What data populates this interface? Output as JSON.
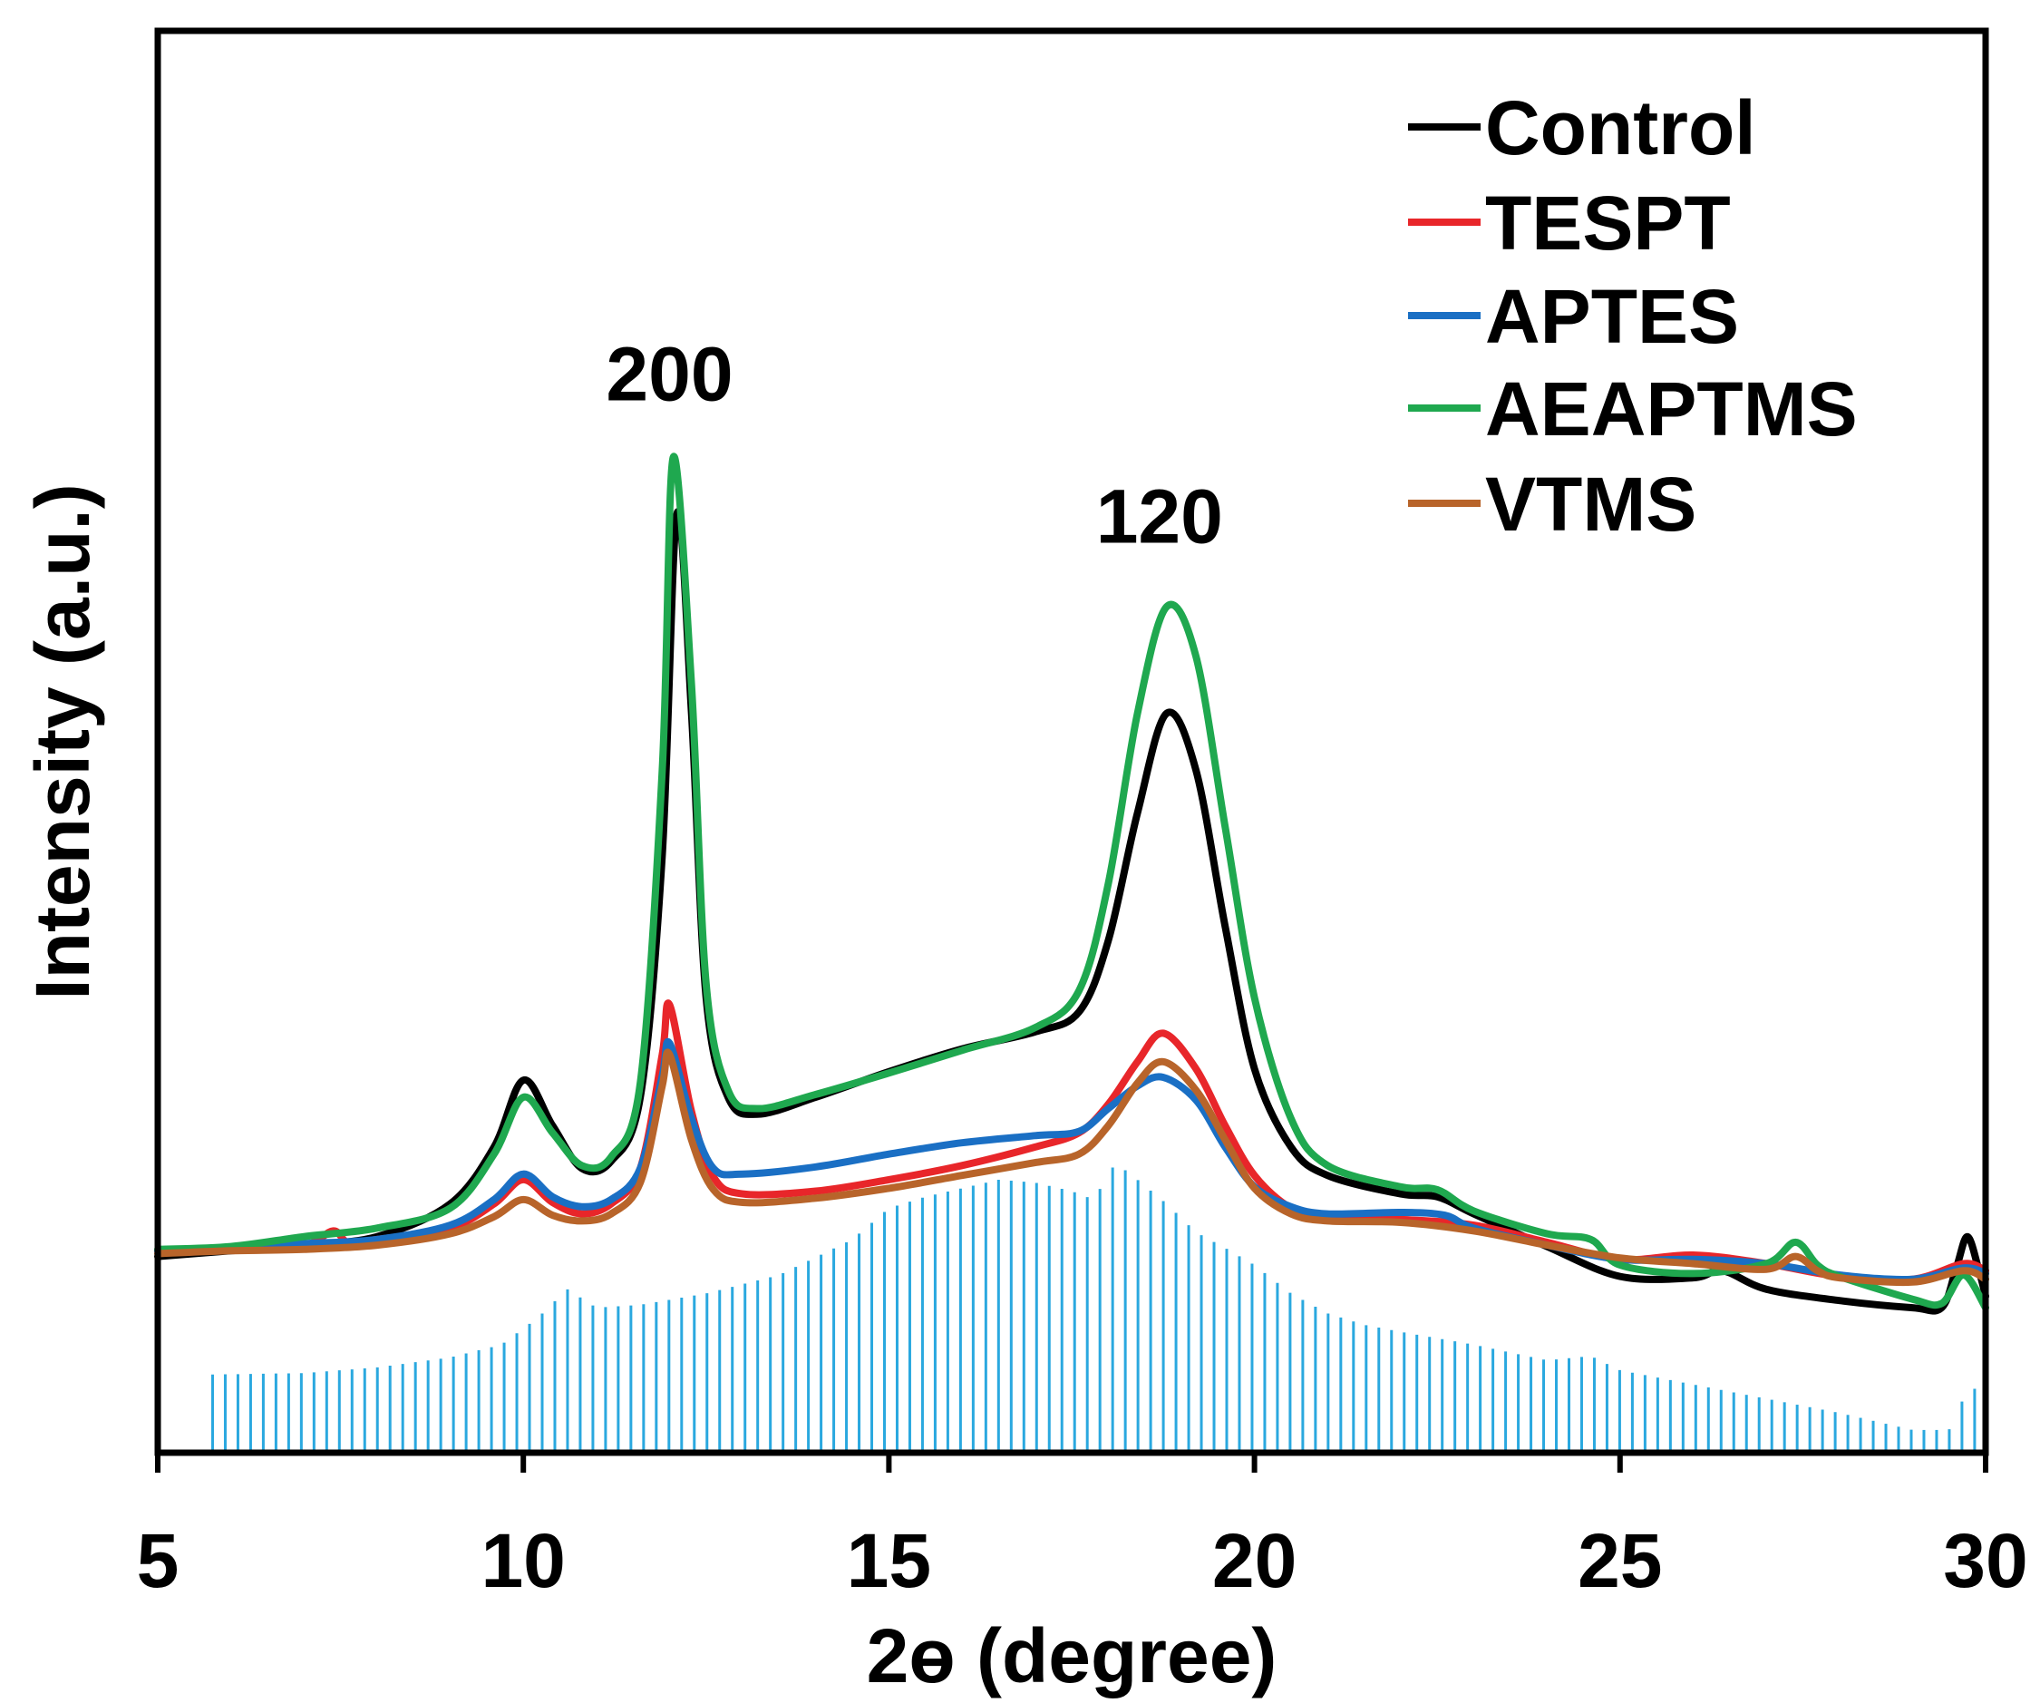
{
  "chart_data": {
    "type": "line",
    "title": "",
    "xlabel": "2ɵ (degree)",
    "ylabel": "Intensity (a.u.)",
    "xlim": [
      5,
      30
    ],
    "ylim": [
      0,
      100
    ],
    "xticks": [
      5,
      10,
      15,
      20,
      25,
      30
    ],
    "yticks_visible": false,
    "grid": false,
    "legend_position": "top-right",
    "annotations": [
      {
        "text": "200",
        "x": 12.0,
        "y": 74
      },
      {
        "text": "120",
        "x": 18.7,
        "y": 64
      }
    ],
    "series": [
      {
        "name": "Control",
        "color": "#000000",
        "points": [
          [
            5,
            13.8
          ],
          [
            6,
            14.2
          ],
          [
            7,
            14.6
          ],
          [
            8,
            15.2
          ],
          [
            9,
            17.5
          ],
          [
            9.6,
            21.5
          ],
          [
            10.0,
            26.2
          ],
          [
            10.4,
            23
          ],
          [
            10.8,
            20
          ],
          [
            11.2,
            20.5
          ],
          [
            11.6,
            25
          ],
          [
            11.9,
            42
          ],
          [
            12.1,
            66
          ],
          [
            12.3,
            52
          ],
          [
            12.5,
            32
          ],
          [
            12.8,
            25
          ],
          [
            13.2,
            23.8
          ],
          [
            14,
            25
          ],
          [
            15,
            26.8
          ],
          [
            16,
            28.4
          ],
          [
            17,
            29.6
          ],
          [
            17.6,
            31
          ],
          [
            18.0,
            36
          ],
          [
            18.4,
            45
          ],
          [
            18.8,
            52
          ],
          [
            19.2,
            48
          ],
          [
            19.6,
            37
          ],
          [
            20.0,
            27
          ],
          [
            20.5,
            21.5
          ],
          [
            21.0,
            19.5
          ],
          [
            22.0,
            18.2
          ],
          [
            22.5,
            18
          ],
          [
            23.0,
            16.8
          ],
          [
            24.0,
            14.5
          ],
          [
            25.0,
            12.4
          ],
          [
            26.0,
            12.3
          ],
          [
            26.4,
            12.8
          ],
          [
            27.0,
            11.5
          ],
          [
            28.0,
            10.7
          ],
          [
            29.0,
            10.2
          ],
          [
            29.4,
            10.2
          ],
          [
            29.6,
            13
          ],
          [
            29.75,
            15.2
          ],
          [
            29.9,
            13
          ],
          [
            30,
            11
          ]
        ]
      },
      {
        "name": "TESPT",
        "color": "#e8262a",
        "points": [
          [
            5,
            14.2
          ],
          [
            6,
            14.3
          ],
          [
            7,
            14.6
          ],
          [
            7.4,
            15.6
          ],
          [
            7.6,
            14.8
          ],
          [
            8,
            15.0
          ],
          [
            9,
            15.8
          ],
          [
            9.6,
            17.5
          ],
          [
            10.0,
            19.2
          ],
          [
            10.4,
            17.6
          ],
          [
            10.8,
            16.8
          ],
          [
            11.2,
            17.5
          ],
          [
            11.6,
            20
          ],
          [
            11.9,
            28
          ],
          [
            12.0,
            31.5
          ],
          [
            12.3,
            24
          ],
          [
            12.6,
            19.4
          ],
          [
            13,
            18.2
          ],
          [
            14,
            18.4
          ],
          [
            15,
            19.2
          ],
          [
            16,
            20.2
          ],
          [
            17,
            21.5
          ],
          [
            17.6,
            22.5
          ],
          [
            18.0,
            24.5
          ],
          [
            18.4,
            27.5
          ],
          [
            18.75,
            29.5
          ],
          [
            19.2,
            27
          ],
          [
            19.6,
            23
          ],
          [
            20.0,
            19.5
          ],
          [
            20.5,
            17.2
          ],
          [
            21,
            16.6
          ],
          [
            22,
            16.4
          ],
          [
            23,
            16.0
          ],
          [
            24,
            14.8
          ],
          [
            25,
            13.6
          ],
          [
            26,
            13.9
          ],
          [
            27,
            13.3
          ],
          [
            28,
            12.4
          ],
          [
            29,
            12.2
          ],
          [
            29.7,
            13.3
          ],
          [
            30,
            12.8
          ]
        ]
      },
      {
        "name": "APTES",
        "color": "#1a6fc4",
        "points": [
          [
            5,
            14.2
          ],
          [
            6,
            14.4
          ],
          [
            7,
            14.7
          ],
          [
            8,
            15.0
          ],
          [
            9,
            16.0
          ],
          [
            9.6,
            17.8
          ],
          [
            10.0,
            19.6
          ],
          [
            10.4,
            18
          ],
          [
            10.8,
            17.3
          ],
          [
            11.2,
            17.8
          ],
          [
            11.6,
            20
          ],
          [
            11.9,
            26.5
          ],
          [
            12.0,
            28.8
          ],
          [
            12.3,
            23.5
          ],
          [
            12.6,
            20
          ],
          [
            13,
            19.6
          ],
          [
            14,
            20.1
          ],
          [
            15,
            21.0
          ],
          [
            16,
            21.8
          ],
          [
            17,
            22.3
          ],
          [
            17.6,
            22.6
          ],
          [
            18.0,
            24.2
          ],
          [
            18.4,
            25.8
          ],
          [
            18.75,
            26.4
          ],
          [
            19.2,
            24.8
          ],
          [
            19.6,
            21.5
          ],
          [
            20.0,
            18.7
          ],
          [
            20.5,
            17.3
          ],
          [
            21,
            16.8
          ],
          [
            22,
            16.9
          ],
          [
            22.6,
            16.7
          ],
          [
            23,
            15.8
          ],
          [
            24,
            14.6
          ],
          [
            25,
            13.6
          ],
          [
            26,
            13.6
          ],
          [
            27,
            13.3
          ],
          [
            28,
            12.5
          ],
          [
            29,
            12.2
          ],
          [
            29.7,
            13.0
          ],
          [
            30,
            12.6
          ]
        ]
      },
      {
        "name": "AEAPTMS",
        "color": "#1fa84f",
        "points": [
          [
            5,
            14.3
          ],
          [
            6,
            14.5
          ],
          [
            7,
            15.2
          ],
          [
            8,
            15.8
          ],
          [
            9,
            17.2
          ],
          [
            9.6,
            21
          ],
          [
            10.0,
            25.0
          ],
          [
            10.4,
            22.5
          ],
          [
            10.8,
            20.2
          ],
          [
            11.2,
            20.8
          ],
          [
            11.6,
            26
          ],
          [
            11.9,
            48
          ],
          [
            12.05,
            70
          ],
          [
            12.3,
            54
          ],
          [
            12.5,
            33
          ],
          [
            12.8,
            25.5
          ],
          [
            13.2,
            24.2
          ],
          [
            14,
            25.2
          ],
          [
            15,
            26.7
          ],
          [
            16,
            28.3
          ],
          [
            17,
            29.9
          ],
          [
            17.6,
            32.5
          ],
          [
            18.0,
            40
          ],
          [
            18.4,
            52
          ],
          [
            18.8,
            59.5
          ],
          [
            19.2,
            56
          ],
          [
            19.6,
            44
          ],
          [
            20.0,
            32
          ],
          [
            20.5,
            23.5
          ],
          [
            21.0,
            20.2
          ],
          [
            22.0,
            18.7
          ],
          [
            22.5,
            18.5
          ],
          [
            23.0,
            17.0
          ],
          [
            24.0,
            15.4
          ],
          [
            24.6,
            15.0
          ],
          [
            25.0,
            13.2
          ],
          [
            26.0,
            12.6
          ],
          [
            27.0,
            13.3
          ],
          [
            27.4,
            14.8
          ],
          [
            27.7,
            13.2
          ],
          [
            28.0,
            12.4
          ],
          [
            29.0,
            10.8
          ],
          [
            29.4,
            10.5
          ],
          [
            29.7,
            12.5
          ],
          [
            30,
            10.2
          ]
        ]
      },
      {
        "name": "VTMS",
        "color": "#b8642a",
        "points": [
          [
            5,
            14.0
          ],
          [
            6,
            14.2
          ],
          [
            7,
            14.3
          ],
          [
            8,
            14.6
          ],
          [
            9,
            15.4
          ],
          [
            9.6,
            16.6
          ],
          [
            10.0,
            17.8
          ],
          [
            10.4,
            16.7
          ],
          [
            10.8,
            16.3
          ],
          [
            11.2,
            16.8
          ],
          [
            11.6,
            19
          ],
          [
            11.9,
            25.8
          ],
          [
            12.0,
            28.0
          ],
          [
            12.3,
            22
          ],
          [
            12.6,
            18.5
          ],
          [
            13,
            17.6
          ],
          [
            14,
            17.9
          ],
          [
            15,
            18.6
          ],
          [
            16,
            19.5
          ],
          [
            17,
            20.4
          ],
          [
            17.6,
            21.0
          ],
          [
            18.0,
            23
          ],
          [
            18.4,
            26
          ],
          [
            18.75,
            27.5
          ],
          [
            19.2,
            25.5
          ],
          [
            19.6,
            22
          ],
          [
            20.0,
            18.6
          ],
          [
            20.5,
            16.8
          ],
          [
            21,
            16.3
          ],
          [
            22,
            16.2
          ],
          [
            23,
            15.6
          ],
          [
            24,
            14.6
          ],
          [
            25,
            13.7
          ],
          [
            26,
            13.3
          ],
          [
            27,
            12.9
          ],
          [
            27.4,
            13.8
          ],
          [
            27.7,
            12.8
          ],
          [
            28,
            12.3
          ],
          [
            29,
            12.0
          ],
          [
            29.7,
            12.8
          ],
          [
            30,
            12.2
          ]
        ]
      }
    ],
    "reference_pattern": {
      "name": "reference bars",
      "color": "#2aa8df",
      "x_start": 5.75,
      "x_end": 29.85,
      "count": 140,
      "profile": [
        [
          5.75,
          5.5
        ],
        [
          7,
          5.6
        ],
        [
          8,
          6.0
        ],
        [
          9,
          6.7
        ],
        [
          9.7,
          7.6
        ],
        [
          10.2,
          9.5
        ],
        [
          10.6,
          11.5
        ],
        [
          11.0,
          10.2
        ],
        [
          11.6,
          10.4
        ],
        [
          12.5,
          11.2
        ],
        [
          13.5,
          12.5
        ],
        [
          14.5,
          15
        ],
        [
          15.0,
          17.2
        ],
        [
          15.5,
          18.0
        ],
        [
          16.0,
          18.6
        ],
        [
          16.5,
          19.2
        ],
        [
          17.0,
          19.0
        ],
        [
          17.5,
          18.4
        ],
        [
          17.8,
          17.8
        ],
        [
          18.1,
          20.4
        ],
        [
          18.4,
          19.2
        ],
        [
          18.8,
          17.5
        ],
        [
          19.2,
          15.5
        ],
        [
          19.6,
          14.4
        ],
        [
          20.0,
          13.2
        ],
        [
          20.5,
          11.2
        ],
        [
          21.0,
          9.8
        ],
        [
          21.5,
          9.0
        ],
        [
          22.0,
          8.5
        ],
        [
          23.0,
          7.6
        ],
        [
          24.0,
          6.5
        ],
        [
          24.6,
          6.8
        ],
        [
          25.0,
          5.8
        ],
        [
          26.0,
          4.8
        ],
        [
          27.0,
          3.8
        ],
        [
          28.0,
          2.8
        ],
        [
          29.0,
          1.6
        ],
        [
          29.5,
          1.6
        ],
        [
          29.6,
          3.2
        ],
        [
          29.85,
          4.5
        ]
      ]
    }
  }
}
